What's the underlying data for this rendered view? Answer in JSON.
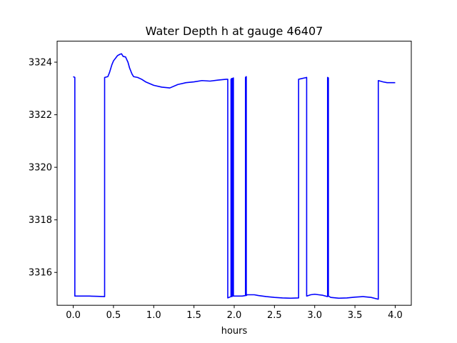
{
  "chart_data": {
    "type": "line",
    "title": "Water Depth h at gauge 46407",
    "xlabel": "hours",
    "ylabel": "",
    "xlim": [
      -0.2,
      4.2
    ],
    "ylim": [
      3314.75,
      3324.8
    ],
    "x_ticks": [
      0.0,
      0.5,
      1.0,
      1.5,
      2.0,
      2.5,
      3.0,
      3.5,
      4.0
    ],
    "x_tick_labels": [
      "0.0",
      "0.5",
      "1.0",
      "1.5",
      "2.0",
      "2.5",
      "3.0",
      "3.5",
      "4.0"
    ],
    "y_ticks": [
      3316,
      3318,
      3320,
      3322,
      3324
    ],
    "y_tick_labels": [
      "3316",
      "3318",
      "3320",
      "3322",
      "3324"
    ],
    "grid": false,
    "legend": "none",
    "color": "#0000ff",
    "series": [
      {
        "x": [
          0.0,
          0.02,
          0.02,
          0.1,
          0.2,
          0.3,
          0.39,
          0.39,
          0.43,
          0.45,
          0.48,
          0.5,
          0.55,
          0.58,
          0.6,
          0.62,
          0.65,
          0.68,
          0.7,
          0.73,
          0.75,
          0.8,
          0.85,
          0.9,
          1.0,
          1.1,
          1.2,
          1.3,
          1.4,
          1.5,
          1.6,
          1.7,
          1.8,
          1.9,
          1.92,
          1.92,
          1.96,
          1.96,
          1.97,
          1.97,
          1.98,
          1.98,
          1.99,
          1.99,
          2.02,
          2.1,
          2.14,
          2.14,
          2.15,
          2.15,
          2.16,
          2.16,
          2.2,
          2.25,
          2.3,
          2.4,
          2.5,
          2.6,
          2.7,
          2.8,
          2.8,
          2.9,
          2.9,
          2.95,
          3.0,
          3.05,
          3.1,
          3.16,
          3.16,
          3.17,
          3.17,
          3.2,
          3.3,
          3.4,
          3.5,
          3.6,
          3.7,
          3.79,
          3.79,
          3.85,
          3.9,
          4.0
        ],
        "y": [
          3323.45,
          3323.42,
          3315.1,
          3315.1,
          3315.1,
          3315.09,
          3315.08,
          3323.42,
          3323.45,
          3323.6,
          3323.9,
          3324.05,
          3324.25,
          3324.3,
          3324.32,
          3324.22,
          3324.2,
          3324.0,
          3323.78,
          3323.55,
          3323.45,
          3323.42,
          3323.35,
          3323.25,
          3323.12,
          3323.05,
          3323.02,
          3323.15,
          3323.22,
          3323.25,
          3323.3,
          3323.28,
          3323.32,
          3323.35,
          3323.35,
          3315.03,
          3315.08,
          3323.35,
          3323.38,
          3315.08,
          3315.1,
          3323.38,
          3323.4,
          3315.1,
          3315.1,
          3315.1,
          3315.12,
          3323.42,
          3323.45,
          3315.12,
          3315.15,
          3315.15,
          3315.15,
          3315.15,
          3315.12,
          3315.08,
          3315.05,
          3315.03,
          3315.02,
          3315.03,
          3323.35,
          3323.42,
          3315.1,
          3315.15,
          3315.17,
          3315.15,
          3315.13,
          3315.08,
          3323.42,
          3323.4,
          3315.1,
          3315.05,
          3315.02,
          3315.03,
          3315.06,
          3315.08,
          3315.05,
          3314.98,
          3323.3,
          3323.25,
          3323.22,
          3323.22
        ]
      }
    ]
  }
}
